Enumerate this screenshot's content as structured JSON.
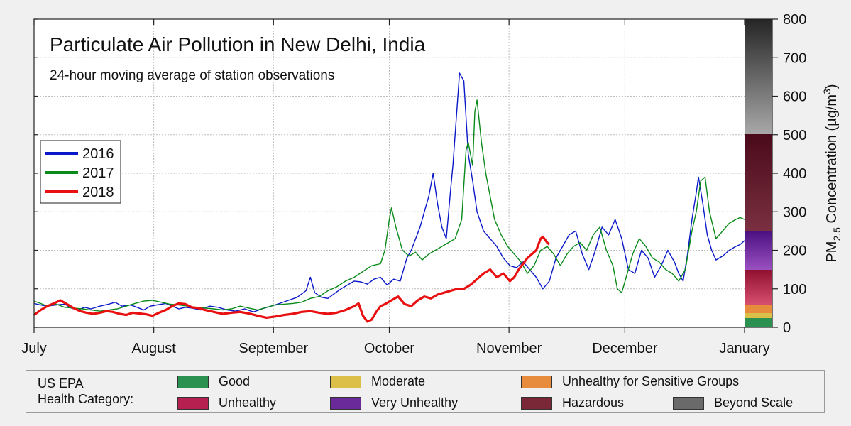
{
  "chart_data": {
    "type": "line",
    "title": "Particulate Air Pollution in New Delhi, India",
    "subtitle": "24-hour moving average of station observations",
    "ylabel": "PM",
    "ylabel_sub": "2.5",
    "ylabel_rest": " Concentration (µg/m",
    "ylabel_sup": "3",
    "ylabel_end": ")",
    "ylim": [
      0,
      800
    ],
    "y_ticks": [
      "0",
      "100",
      "200",
      "300",
      "400",
      "500",
      "600",
      "700",
      "800"
    ],
    "x_ticks": [
      "July",
      "August",
      "September",
      "October",
      "November",
      "December",
      "January"
    ],
    "grid": true,
    "legend_position": "left",
    "series": [
      {
        "name": "2016",
        "color": "#0a18c8",
        "points": [
          [
            0,
            62
          ],
          [
            3,
            58
          ],
          [
            6,
            55
          ],
          [
            10,
            58
          ],
          [
            14,
            60
          ],
          [
            17,
            50
          ],
          [
            20,
            45
          ],
          [
            23,
            52
          ],
          [
            26,
            48
          ],
          [
            30,
            55
          ],
          [
            34,
            60
          ],
          [
            37,
            65
          ],
          [
            40,
            55
          ],
          [
            44,
            58
          ],
          [
            47,
            52
          ],
          [
            50,
            45
          ],
          [
            53,
            55
          ],
          [
            56,
            58
          ],
          [
            60,
            62
          ],
          [
            63,
            55
          ],
          [
            66,
            48
          ],
          [
            69,
            52
          ],
          [
            72,
            50
          ],
          [
            76,
            45
          ],
          [
            80,
            55
          ],
          [
            84,
            52
          ],
          [
            88,
            45
          ],
          [
            92,
            42
          ],
          [
            96,
            48
          ],
          [
            100,
            40
          ],
          [
            104,
            48
          ],
          [
            108,
            55
          ],
          [
            112,
            62
          ],
          [
            116,
            70
          ],
          [
            120,
            78
          ],
          [
            124,
            95
          ],
          [
            126,
            130
          ],
          [
            128,
            90
          ],
          [
            131,
            78
          ],
          [
            134,
            75
          ],
          [
            137,
            88
          ],
          [
            140,
            100
          ],
          [
            143,
            110
          ],
          [
            146,
            120
          ],
          [
            149,
            118
          ],
          [
            152,
            112
          ],
          [
            155,
            125
          ],
          [
            158,
            130
          ],
          [
            161,
            110
          ],
          [
            164,
            125
          ],
          [
            167,
            120
          ],
          [
            170,
            180
          ],
          [
            172,
            200
          ],
          [
            174,
            230
          ],
          [
            176,
            260
          ],
          [
            178,
            300
          ],
          [
            180,
            340
          ],
          [
            182,
            400
          ],
          [
            184,
            320
          ],
          [
            186,
            260
          ],
          [
            188,
            230
          ],
          [
            190,
            360
          ],
          [
            191,
            420
          ],
          [
            193,
            580
          ],
          [
            194,
            660
          ],
          [
            196,
            640
          ],
          [
            198,
            450
          ],
          [
            200,
            380
          ],
          [
            202,
            300
          ],
          [
            205,
            250
          ],
          [
            208,
            230
          ],
          [
            211,
            210
          ],
          [
            214,
            180
          ],
          [
            217,
            160
          ],
          [
            220,
            155
          ],
          [
            223,
            170
          ],
          [
            226,
            150
          ],
          [
            229,
            130
          ],
          [
            232,
            100
          ],
          [
            235,
            120
          ],
          [
            238,
            180
          ],
          [
            241,
            210
          ],
          [
            244,
            240
          ],
          [
            247,
            250
          ],
          [
            250,
            190
          ],
          [
            253,
            150
          ],
          [
            256,
            200
          ],
          [
            259,
            260
          ],
          [
            262,
            240
          ],
          [
            265,
            280
          ],
          [
            268,
            230
          ],
          [
            271,
            150
          ],
          [
            274,
            140
          ],
          [
            277,
            200
          ],
          [
            280,
            180
          ],
          [
            283,
            130
          ],
          [
            286,
            160
          ],
          [
            289,
            200
          ],
          [
            292,
            170
          ],
          [
            294,
            140
          ],
          [
            296,
            120
          ],
          [
            298,
            190
          ],
          [
            300,
            280
          ],
          [
            302,
            350
          ],
          [
            303,
            390
          ],
          [
            305,
            320
          ],
          [
            307,
            240
          ],
          [
            309,
            200
          ],
          [
            311,
            175
          ],
          [
            314,
            185
          ],
          [
            317,
            200
          ],
          [
            320,
            210
          ],
          [
            322,
            215
          ],
          [
            324,
            225
          ]
        ]
      },
      {
        "name": "2017",
        "color": "#0a8a1a",
        "points": [
          [
            0,
            68
          ],
          [
            3,
            62
          ],
          [
            6,
            55
          ],
          [
            10,
            60
          ],
          [
            14,
            52
          ],
          [
            18,
            50
          ],
          [
            22,
            48
          ],
          [
            26,
            45
          ],
          [
            30,
            42
          ],
          [
            34,
            45
          ],
          [
            38,
            48
          ],
          [
            42,
            55
          ],
          [
            46,
            62
          ],
          [
            50,
            68
          ],
          [
            54,
            70
          ],
          [
            58,
            65
          ],
          [
            62,
            60
          ],
          [
            66,
            58
          ],
          [
            70,
            55
          ],
          [
            74,
            52
          ],
          [
            78,
            50
          ],
          [
            82,
            48
          ],
          [
            86,
            45
          ],
          [
            90,
            48
          ],
          [
            94,
            55
          ],
          [
            98,
            50
          ],
          [
            102,
            45
          ],
          [
            106,
            52
          ],
          [
            110,
            58
          ],
          [
            114,
            60
          ],
          [
            118,
            62
          ],
          [
            122,
            65
          ],
          [
            126,
            75
          ],
          [
            130,
            80
          ],
          [
            134,
            95
          ],
          [
            138,
            105
          ],
          [
            142,
            120
          ],
          [
            146,
            130
          ],
          [
            150,
            145
          ],
          [
            154,
            160
          ],
          [
            158,
            165
          ],
          [
            160,
            200
          ],
          [
            162,
            280
          ],
          [
            163,
            310
          ],
          [
            165,
            260
          ],
          [
            168,
            200
          ],
          [
            171,
            185
          ],
          [
            174,
            195
          ],
          [
            177,
            175
          ],
          [
            180,
            190
          ],
          [
            183,
            200
          ],
          [
            186,
            210
          ],
          [
            189,
            220
          ],
          [
            192,
            230
          ],
          [
            195,
            280
          ],
          [
            197,
            460
          ],
          [
            198,
            480
          ],
          [
            200,
            420
          ],
          [
            201,
            560
          ],
          [
            202,
            590
          ],
          [
            204,
            480
          ],
          [
            206,
            400
          ],
          [
            208,
            340
          ],
          [
            210,
            280
          ],
          [
            213,
            240
          ],
          [
            216,
            210
          ],
          [
            219,
            190
          ],
          [
            222,
            170
          ],
          [
            225,
            140
          ],
          [
            228,
            160
          ],
          [
            231,
            200
          ],
          [
            234,
            210
          ],
          [
            237,
            190
          ],
          [
            240,
            160
          ],
          [
            243,
            190
          ],
          [
            246,
            210
          ],
          [
            249,
            220
          ],
          [
            252,
            200
          ],
          [
            255,
            240
          ],
          [
            258,
            260
          ],
          [
            261,
            200
          ],
          [
            264,
            160
          ],
          [
            266,
            100
          ],
          [
            268,
            90
          ],
          [
            270,
            130
          ],
          [
            273,
            190
          ],
          [
            276,
            230
          ],
          [
            279,
            210
          ],
          [
            282,
            180
          ],
          [
            285,
            170
          ],
          [
            288,
            150
          ],
          [
            291,
            140
          ],
          [
            294,
            120
          ],
          [
            297,
            150
          ],
          [
            300,
            250
          ],
          [
            302,
            300
          ],
          [
            304,
            380
          ],
          [
            306,
            390
          ],
          [
            308,
            300
          ],
          [
            311,
            230
          ],
          [
            314,
            250
          ],
          [
            317,
            270
          ],
          [
            320,
            280
          ],
          [
            322,
            285
          ],
          [
            324,
            280
          ]
        ]
      },
      {
        "name": "2018",
        "color": "#e81010",
        "points": [
          [
            0,
            32
          ],
          [
            3,
            45
          ],
          [
            6,
            55
          ],
          [
            9,
            62
          ],
          [
            12,
            70
          ],
          [
            15,
            60
          ],
          [
            18,
            50
          ],
          [
            21,
            42
          ],
          [
            24,
            38
          ],
          [
            27,
            35
          ],
          [
            30,
            38
          ],
          [
            33,
            42
          ],
          [
            36,
            40
          ],
          [
            39,
            35
          ],
          [
            42,
            32
          ],
          [
            45,
            38
          ],
          [
            48,
            36
          ],
          [
            51,
            34
          ],
          [
            54,
            30
          ],
          [
            57,
            38
          ],
          [
            60,
            45
          ],
          [
            63,
            55
          ],
          [
            66,
            62
          ],
          [
            69,
            60
          ],
          [
            72,
            52
          ],
          [
            75,
            50
          ],
          [
            78,
            45
          ],
          [
            82,
            40
          ],
          [
            86,
            35
          ],
          [
            90,
            38
          ],
          [
            94,
            40
          ],
          [
            98,
            36
          ],
          [
            102,
            30
          ],
          [
            106,
            25
          ],
          [
            110,
            28
          ],
          [
            114,
            32
          ],
          [
            118,
            35
          ],
          [
            122,
            40
          ],
          [
            126,
            42
          ],
          [
            130,
            38
          ],
          [
            134,
            35
          ],
          [
            138,
            38
          ],
          [
            142,
            45
          ],
          [
            146,
            55
          ],
          [
            148,
            62
          ],
          [
            150,
            30
          ],
          [
            152,
            15
          ],
          [
            154,
            20
          ],
          [
            156,
            40
          ],
          [
            158,
            55
          ],
          [
            160,
            60
          ],
          [
            163,
            70
          ],
          [
            166,
            80
          ],
          [
            169,
            60
          ],
          [
            172,
            55
          ],
          [
            175,
            70
          ],
          [
            178,
            80
          ],
          [
            181,
            75
          ],
          [
            184,
            85
          ],
          [
            187,
            90
          ],
          [
            190,
            95
          ],
          [
            193,
            100
          ],
          [
            196,
            100
          ],
          [
            199,
            110
          ],
          [
            202,
            125
          ],
          [
            205,
            140
          ],
          [
            208,
            150
          ],
          [
            211,
            130
          ],
          [
            214,
            140
          ],
          [
            217,
            120
          ],
          [
            219,
            130
          ],
          [
            221,
            150
          ],
          [
            223,
            165
          ],
          [
            225,
            180
          ],
          [
            227,
            190
          ],
          [
            229,
            200
          ],
          [
            231,
            230
          ],
          [
            232,
            235
          ],
          [
            234,
            220
          ],
          [
            235,
            215
          ]
        ]
      }
    ]
  },
  "epa": {
    "heading_line1": "US EPA",
    "heading_line2": "Health Category:",
    "categories": [
      {
        "label": "Good",
        "color": "#2a9150"
      },
      {
        "label": "Moderate",
        "color": "#dcbf49"
      },
      {
        "label": "Unhealthy for Sensitive Groups",
        "color": "#e78b3c"
      },
      {
        "label": "Unhealthy",
        "color": "#b62050"
      },
      {
        "label": "Very Unhealthy",
        "color": "#6a2a9a"
      },
      {
        "label": "Hazardous",
        "color": "#7a2838"
      },
      {
        "label": "Beyond Scale",
        "color": "#6a6a6a"
      }
    ]
  }
}
